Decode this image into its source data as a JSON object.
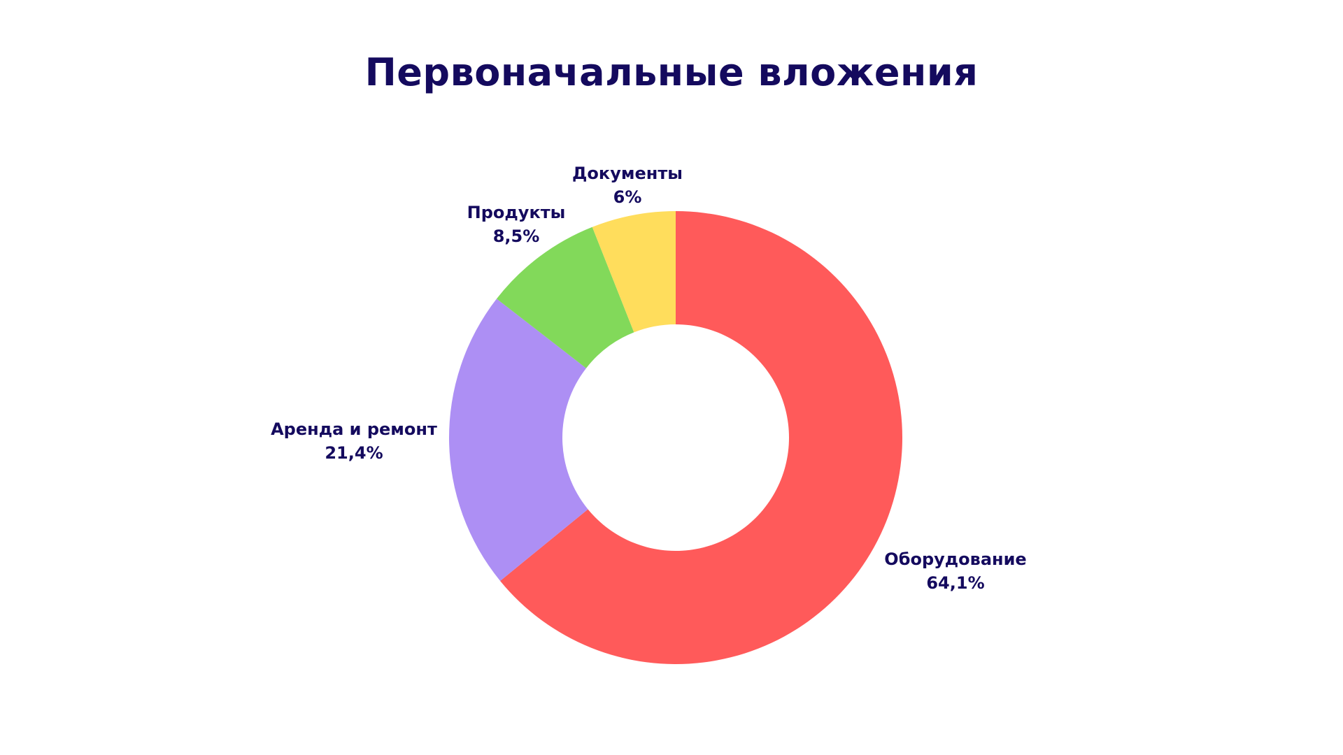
{
  "chart_data": {
    "type": "pie",
    "title": "Первоначальные вложения",
    "donut": true,
    "categories": [
      "Оборудование",
      "Аренда и ремонт",
      "Продукты",
      "Документы"
    ],
    "values": [
      64.1,
      21.4,
      8.5,
      6
    ],
    "value_labels": [
      "64,1%",
      "21,4%",
      "8,5%",
      "6%"
    ],
    "colors": [
      "#ff5a5a",
      "#ad8ff4",
      "#82d95a",
      "#ffdd5c"
    ],
    "unit": "%",
    "start_angle_deg": 0,
    "direction": "clockwise",
    "legend": "none"
  }
}
